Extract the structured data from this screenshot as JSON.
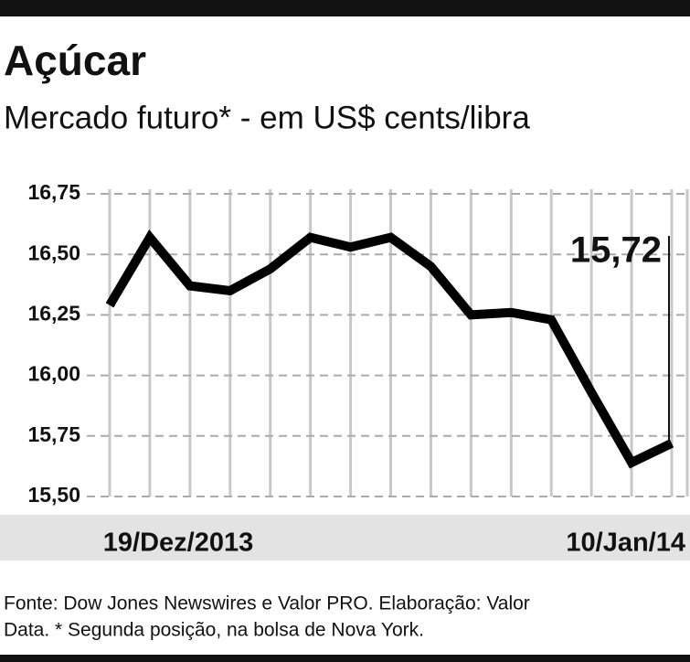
{
  "chart_data": {
    "type": "line",
    "title": "Açúcar",
    "subtitle": "Mercado futuro* - em US$ cents/libra",
    "categories": [
      "19/Dez/2013",
      null,
      null,
      null,
      null,
      null,
      null,
      null,
      null,
      null,
      null,
      null,
      null,
      null,
      "10/Jan/14"
    ],
    "series": [
      {
        "name": "Açúcar",
        "color": "#000000",
        "values": [
          16.29,
          16.57,
          16.37,
          16.35,
          16.44,
          16.57,
          16.53,
          16.57,
          16.45,
          16.25,
          16.26,
          16.23,
          15.93,
          15.64,
          15.72
        ]
      }
    ],
    "value_labels": [
      null,
      null,
      null,
      null,
      null,
      null,
      null,
      null,
      null,
      null,
      null,
      null,
      null,
      null,
      "15,72"
    ],
    "ylim": [
      15.5,
      16.75
    ],
    "yticks": [
      {
        "value": 15.5,
        "label": "15,50"
      },
      {
        "value": 15.75,
        "label": "15,75"
      },
      {
        "value": 16.0,
        "label": "16,00"
      },
      {
        "value": 16.25,
        "label": "16,25"
      },
      {
        "value": 16.5,
        "label": "16,50"
      },
      {
        "value": 16.75,
        "label": "16,75"
      }
    ],
    "grid": true,
    "source": [
      "Fonte: Dow Jones Newswires e Valor PRO. Elaboração: Valor",
      "Data. * Segunda posição, na bolsa de Nova York."
    ]
  }
}
